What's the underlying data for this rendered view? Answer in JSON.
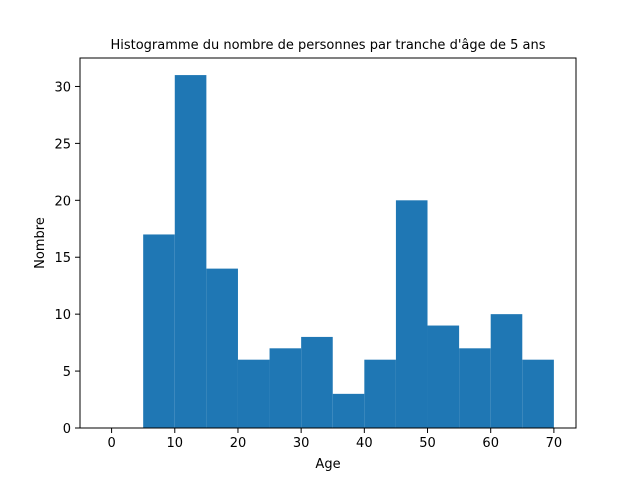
{
  "chart_data": {
    "type": "bar",
    "title": "Histogramme du nombre de personnes par tranche d'âge de 5 ans",
    "xlabel": "Age",
    "ylabel": "Nombre",
    "xlim": [
      -5,
      73.5
    ],
    "ylim": [
      0,
      32.5
    ],
    "xticks": [
      0,
      10,
      20,
      30,
      40,
      50,
      60,
      70
    ],
    "yticks": [
      0,
      5,
      10,
      15,
      20,
      25,
      30
    ],
    "bins": [
      [
        5,
        10
      ],
      [
        10,
        15
      ],
      [
        15,
        20
      ],
      [
        20,
        25
      ],
      [
        25,
        30
      ],
      [
        30,
        35
      ],
      [
        35,
        40
      ],
      [
        40,
        45
      ],
      [
        45,
        50
      ],
      [
        50,
        55
      ],
      [
        55,
        60
      ],
      [
        60,
        65
      ],
      [
        65,
        70
      ]
    ],
    "values": [
      17,
      31,
      14,
      6,
      7,
      8,
      3,
      6,
      20,
      9,
      7,
      10,
      6
    ],
    "bar_color": "#1f77b4",
    "grid": false,
    "legend": "none"
  }
}
